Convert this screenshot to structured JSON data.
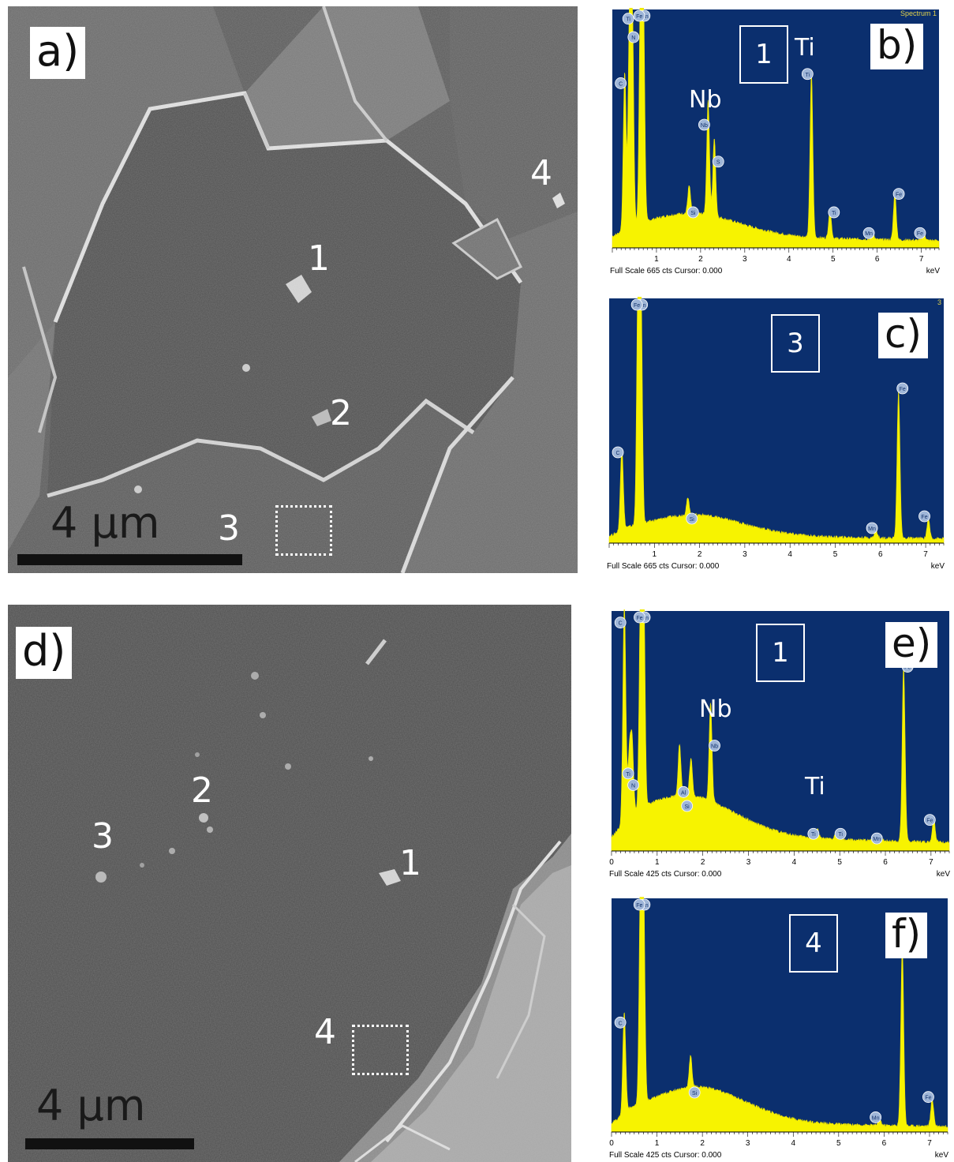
{
  "figure": {
    "sem_a": {
      "label": "a)",
      "scale_text": "4 μm",
      "points": [
        "1",
        "2",
        "3",
        "4"
      ]
    },
    "sem_d": {
      "label": "d)",
      "scale_text": "4 μm",
      "points": [
        "1",
        "2",
        "3",
        "4"
      ]
    },
    "eds": [
      {
        "label": "b)",
        "spot": "1",
        "header": "Spectrum 1",
        "footer": "Full Scale 665 cts Cursor: 0.000",
        "unit": "keV",
        "element_labels": [
          "Nb",
          "Ti"
        ],
        "peak_tags": [
          "Mn",
          "Ti",
          "Fe",
          "N",
          "C",
          "Nb",
          "S",
          "Si",
          "Nb",
          "Nb",
          "Ti",
          "Ti",
          "Mn",
          "Fe",
          "Mn",
          "Fe"
        ]
      },
      {
        "label": "c)",
        "spot": "3",
        "header": "3",
        "footer": "Full Scale 665 cts Cursor: 0.000",
        "unit": "keV",
        "element_labels": [],
        "peak_tags": [
          "Mn",
          "Fe",
          "C",
          "Si",
          "Mn",
          "Fe",
          "Mn",
          "Fe"
        ]
      },
      {
        "label": "e)",
        "spot": "1",
        "header": "",
        "footer": "Full Scale 425 cts Cursor: 0.000",
        "unit": "keV",
        "element_labels": [
          "Nb",
          "Ti"
        ],
        "peak_tags": [
          "C",
          "Mn",
          "Fe",
          "Ti",
          "N",
          "Al",
          "Si",
          "Nb",
          "Nb",
          "Nb",
          "Ti",
          "Ti",
          "Mn",
          "Fe"
        ]
      },
      {
        "label": "f)",
        "spot": "4",
        "header": "",
        "footer": "Full Scale 425 cts Cursor: 0.000",
        "unit": "keV",
        "element_labels": [],
        "peak_tags": [
          "Mn",
          "Fe",
          "C",
          "Si",
          "Mn",
          "Fe"
        ]
      }
    ]
  },
  "chart_data": [
    {
      "type": "line",
      "panel": "b)",
      "x_ticks": [
        "1",
        "2",
        "3",
        "4",
        "5",
        "6",
        "7"
      ],
      "xlim": [
        0,
        7.4
      ],
      "peaks": [
        {
          "el": "C",
          "kev": 0.28,
          "rel": 0.68
        },
        {
          "el": "N",
          "kev": 0.39,
          "rel": 0.88
        },
        {
          "el": "Ti",
          "kev": 0.45,
          "rel": 0.96
        },
        {
          "el": "Mn",
          "kev": 0.64,
          "rel": 1.0
        },
        {
          "el": "Fe",
          "kev": 0.7,
          "rel": 1.0
        },
        {
          "el": "Si",
          "kev": 1.74,
          "rel": 0.12
        },
        {
          "el": "Nb",
          "kev": 2.17,
          "rel": 0.5
        },
        {
          "el": "S",
          "kev": 2.31,
          "rel": 0.34
        },
        {
          "el": "Ti",
          "kev": 4.51,
          "rel": 0.72
        },
        {
          "el": "Ti",
          "kev": 4.93,
          "rel": 0.12
        },
        {
          "el": "Mn",
          "kev": 5.9,
          "rel": 0.03
        },
        {
          "el": "Fe",
          "kev": 6.4,
          "rel": 0.2
        },
        {
          "el": "Fe",
          "kev": 7.06,
          "rel": 0.03
        }
      ]
    },
    {
      "type": "line",
      "panel": "c)",
      "x_ticks": [
        "1",
        "2",
        "3",
        "4",
        "5",
        "6",
        "7"
      ],
      "xlim": [
        0,
        7.4
      ],
      "peaks": [
        {
          "el": "C",
          "kev": 0.28,
          "rel": 0.35
        },
        {
          "el": "Mn",
          "kev": 0.64,
          "rel": 1.0
        },
        {
          "el": "Fe",
          "kev": 0.7,
          "rel": 1.0
        },
        {
          "el": "Si",
          "kev": 1.74,
          "rel": 0.07
        },
        {
          "el": "Mn",
          "kev": 5.9,
          "rel": 0.03
        },
        {
          "el": "Fe",
          "kev": 6.4,
          "rel": 0.62
        },
        {
          "el": "Fe",
          "kev": 7.06,
          "rel": 0.08
        }
      ]
    },
    {
      "type": "line",
      "panel": "e)",
      "x_ticks": [
        "0",
        "1",
        "2",
        "3",
        "4",
        "5",
        "6",
        "7"
      ],
      "xlim": [
        0,
        7.4
      ],
      "peaks": [
        {
          "el": "C",
          "kev": 0.28,
          "rel": 0.95
        },
        {
          "el": "N",
          "kev": 0.39,
          "rel": 0.25
        },
        {
          "el": "Ti",
          "kev": 0.45,
          "rel": 0.3
        },
        {
          "el": "Mn",
          "kev": 0.64,
          "rel": 1.0
        },
        {
          "el": "Fe",
          "kev": 0.7,
          "rel": 1.0
        },
        {
          "el": "Al",
          "kev": 1.49,
          "rel": 0.22
        },
        {
          "el": "Si",
          "kev": 1.74,
          "rel": 0.16
        },
        {
          "el": "Nb",
          "kev": 2.17,
          "rel": 0.42
        },
        {
          "el": "Ti",
          "kev": 4.51,
          "rel": 0.04
        },
        {
          "el": "Ti",
          "kev": 4.93,
          "rel": 0.04
        },
        {
          "el": "Mn",
          "kev": 5.9,
          "rel": 0.02
        },
        {
          "el": "Fe",
          "kev": 6.4,
          "rel": 0.76
        },
        {
          "el": "Fe",
          "kev": 7.06,
          "rel": 0.1
        }
      ]
    },
    {
      "type": "line",
      "panel": "f)",
      "x_ticks": [
        "0",
        "1",
        "2",
        "3",
        "4",
        "5",
        "6",
        "7"
      ],
      "xlim": [
        0,
        7.4
      ],
      "peaks": [
        {
          "el": "C",
          "kev": 0.28,
          "rel": 0.45
        },
        {
          "el": "Mn",
          "kev": 0.64,
          "rel": 1.0
        },
        {
          "el": "Fe",
          "kev": 0.7,
          "rel": 1.0
        },
        {
          "el": "Si",
          "kev": 1.74,
          "rel": 0.14
        },
        {
          "el": "Mn",
          "kev": 5.9,
          "rel": 0.03
        },
        {
          "el": "Fe",
          "kev": 6.4,
          "rel": 0.8
        },
        {
          "el": "Fe",
          "kev": 7.06,
          "rel": 0.12
        }
      ]
    }
  ]
}
